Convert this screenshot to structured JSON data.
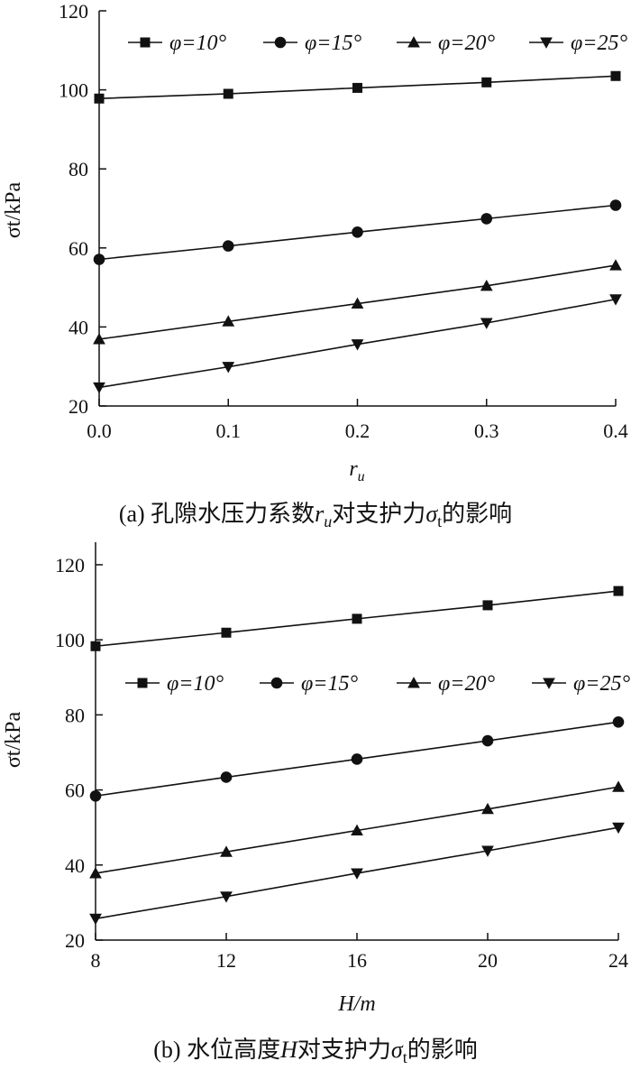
{
  "chart_data": [
    {
      "type": "line",
      "caption": "(a) 孔隙水压力系数r对支护力σt的影响",
      "xlabel": "r",
      "ylabel": "σt/kPa",
      "x": [
        0.0,
        0.1,
        0.2,
        0.3,
        0.4
      ],
      "xticks": [
        "0.0",
        "0.1",
        "0.2",
        "0.3",
        "0.4"
      ],
      "xlim": [
        0.0,
        0.4
      ],
      "yticks": [
        "20",
        "40",
        "60",
        "80",
        "100",
        "120"
      ],
      "ylim": [
        20,
        120
      ],
      "legend_position": "top",
      "series": [
        {
          "name": "φ=10°",
          "marker": "square",
          "values": [
            97.8,
            99.0,
            100.5,
            101.9,
            103.5
          ]
        },
        {
          "name": "φ=15°",
          "marker": "circle",
          "values": [
            57.1,
            60.5,
            64.0,
            67.4,
            70.8
          ]
        },
        {
          "name": "φ=20°",
          "marker": "triangle-up",
          "values": [
            36.9,
            41.4,
            45.9,
            50.4,
            55.6
          ]
        },
        {
          "name": "φ=25°",
          "marker": "triangle-down",
          "values": [
            24.7,
            29.9,
            35.6,
            41.0,
            47.0
          ]
        }
      ]
    },
    {
      "type": "line",
      "caption": "(b) 水位高度H对支护力σt的影响",
      "xlabel": "H/m",
      "ylabel": "σt/kPa",
      "x": [
        8,
        12,
        16,
        20,
        24
      ],
      "xticks": [
        "8",
        "12",
        "16",
        "20",
        "24"
      ],
      "xlim": [
        8,
        24
      ],
      "yticks": [
        "20",
        "40",
        "60",
        "80",
        "100",
        "120"
      ],
      "ylim": [
        20,
        126
      ],
      "legend_position": "upper-middle",
      "series": [
        {
          "name": "φ=10°",
          "marker": "square",
          "values": [
            98.3,
            101.9,
            105.6,
            109.2,
            113.0
          ]
        },
        {
          "name": "φ=15°",
          "marker": "circle",
          "values": [
            58.4,
            63.4,
            68.2,
            73.1,
            78.1
          ]
        },
        {
          "name": "φ=20°",
          "marker": "triangle-up",
          "values": [
            37.8,
            43.5,
            49.2,
            54.9,
            60.8
          ]
        },
        {
          "name": "φ=25°",
          "marker": "triangle-down",
          "values": [
            25.7,
            31.6,
            37.8,
            43.8,
            50.0
          ]
        }
      ]
    }
  ]
}
